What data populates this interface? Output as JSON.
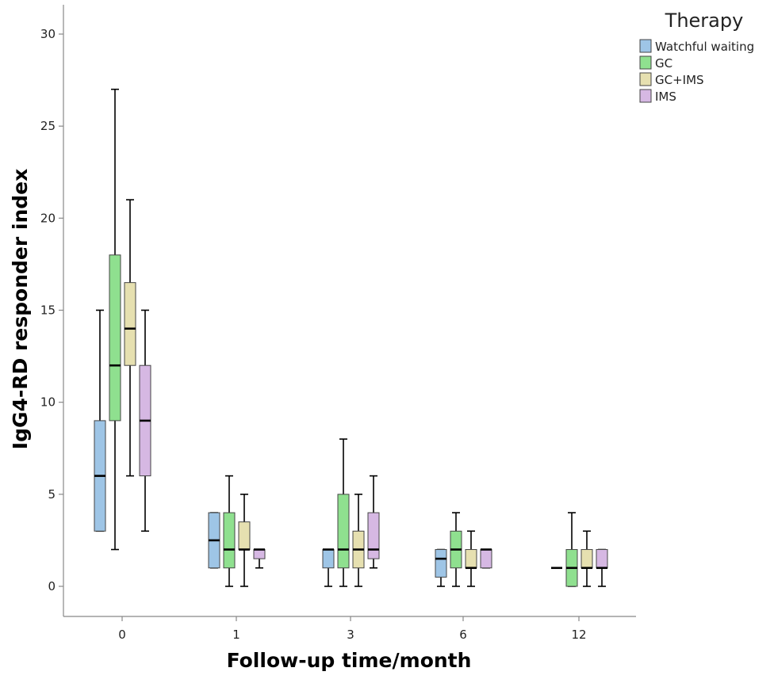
{
  "chart_data": {
    "type": "boxplot",
    "title": "",
    "xlabel": "Follow-up time/month",
    "ylabel": "IgG4-RD responder index",
    "ylim": [
      -1.5,
      31.5
    ],
    "yticks": [
      0,
      5,
      10,
      15,
      20,
      25,
      30
    ],
    "categories": [
      "0",
      "1",
      "3",
      "6",
      "12"
    ],
    "legend": {
      "title": "Therapy",
      "position": "top-right"
    },
    "series": [
      {
        "name": "Watchful waiting",
        "color": "#9ec5e6",
        "boxes": [
          {
            "min": 3,
            "q1": 3,
            "median": 6,
            "q3": 9,
            "max": 15
          },
          {
            "min": 1,
            "q1": 1,
            "median": 2.5,
            "q3": 4,
            "max": 4
          },
          {
            "min": 0,
            "q1": 1,
            "median": 2,
            "q3": 2,
            "max": 2
          },
          {
            "min": 0,
            "q1": 0.5,
            "median": 1.5,
            "q3": 2,
            "max": 2
          },
          {
            "min": 1,
            "q1": 1,
            "median": 1,
            "q3": 1,
            "max": 1
          }
        ]
      },
      {
        "name": "GC",
        "color": "#8fe08f",
        "boxes": [
          {
            "min": 2,
            "q1": 9,
            "median": 12,
            "q3": 18,
            "max": 27
          },
          {
            "min": 0,
            "q1": 1,
            "median": 2,
            "q3": 4,
            "max": 6
          },
          {
            "min": 0,
            "q1": 1,
            "median": 2,
            "q3": 5,
            "max": 8
          },
          {
            "min": 0,
            "q1": 1,
            "median": 2,
            "q3": 3,
            "max": 4
          },
          {
            "min": 0,
            "q1": 0,
            "median": 1,
            "q3": 2,
            "max": 4
          }
        ]
      },
      {
        "name": "GC+IMS",
        "color": "#e6e0b0",
        "boxes": [
          {
            "min": 6,
            "q1": 12,
            "median": 14,
            "q3": 16.5,
            "max": 21
          },
          {
            "min": 0,
            "q1": 2,
            "median": 2,
            "q3": 3.5,
            "max": 5
          },
          {
            "min": 0,
            "q1": 1,
            "median": 2,
            "q3": 3,
            "max": 5
          },
          {
            "min": 0,
            "q1": 1,
            "median": 1,
            "q3": 2,
            "max": 3
          },
          {
            "min": 0,
            "q1": 1,
            "median": 1,
            "q3": 2,
            "max": 3
          }
        ]
      },
      {
        "name": "IMS",
        "color": "#d6b8e3",
        "boxes": [
          {
            "min": 3,
            "q1": 6,
            "median": 9,
            "q3": 12,
            "max": 15
          },
          {
            "min": 1,
            "q1": 1.5,
            "median": 2,
            "q3": 2,
            "max": 2
          },
          {
            "min": 1,
            "q1": 1.5,
            "median": 2,
            "q3": 4,
            "max": 6
          },
          {
            "min": 1,
            "q1": 1,
            "median": 2,
            "q3": 2,
            "max": 2
          },
          {
            "min": 0,
            "q1": 1,
            "median": 1,
            "q3": 2,
            "max": 2
          }
        ]
      }
    ]
  }
}
